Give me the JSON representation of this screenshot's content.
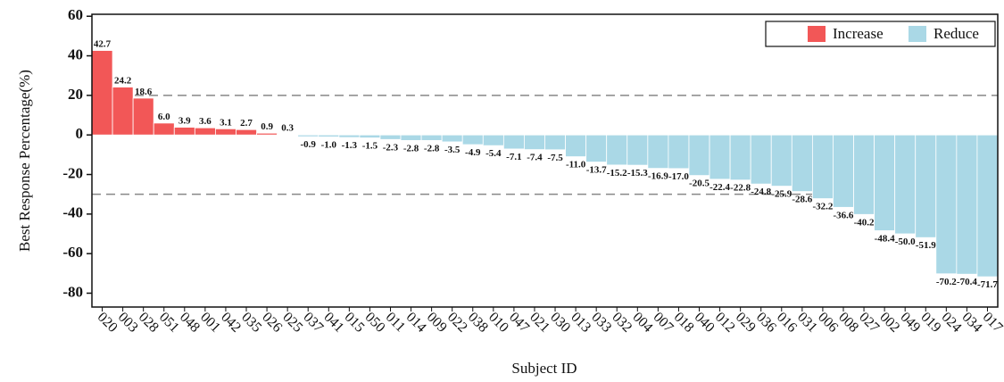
{
  "chart_data": {
    "type": "bar",
    "x_label": "Subject ID",
    "y_label": "Best Response Percentage(%)",
    "categories": [
      "020",
      "003",
      "028",
      "051",
      "048",
      "001",
      "042",
      "035",
      "026",
      "025",
      "037",
      "041",
      "015",
      "050",
      "011",
      "014",
      "009",
      "022",
      "038",
      "010",
      "047",
      "021",
      "030",
      "013",
      "033",
      "032",
      "004",
      "007",
      "018",
      "040",
      "012",
      "029",
      "036",
      "016",
      "031",
      "006",
      "008",
      "027",
      "002",
      "049",
      "019",
      "024",
      "034",
      "017"
    ],
    "series": [
      {
        "name": "Increase",
        "color": "#f25757",
        "values": [
          42.7,
          24.2,
          18.6,
          6.0,
          3.9,
          3.6,
          3.1,
          2.7,
          0.9,
          0.3,
          null,
          null,
          null,
          null,
          null,
          null,
          null,
          null,
          null,
          null,
          null,
          null,
          null,
          null,
          null,
          null,
          null,
          null,
          null,
          null,
          null,
          null,
          null,
          null,
          null,
          null,
          null,
          null,
          null,
          null,
          null,
          null,
          null,
          null
        ],
        "value_labels": [
          "42.7",
          "24.2",
          "18.6",
          "6.0",
          "3.9",
          "3.6",
          "3.1",
          "2.7",
          "0.9",
          "0.3",
          null,
          null,
          null,
          null,
          null,
          null,
          null,
          null,
          null,
          null,
          null,
          null,
          null,
          null,
          null,
          null,
          null,
          null,
          null,
          null,
          null,
          null,
          null,
          null,
          null,
          null,
          null,
          null,
          null,
          null,
          null,
          null,
          null,
          null
        ]
      },
      {
        "name": "Reduce",
        "color": "#aad8e6",
        "values": [
          null,
          null,
          null,
          null,
          null,
          null,
          null,
          null,
          null,
          null,
          -0.9,
          -1.0,
          -1.3,
          -1.5,
          -2.3,
          -2.8,
          -2.8,
          -3.5,
          -4.9,
          -5.4,
          -7.1,
          -7.4,
          -7.5,
          -11.0,
          -13.7,
          -15.2,
          -15.3,
          -16.9,
          -17.0,
          -20.5,
          -22.4,
          -22.8,
          -24.8,
          -25.9,
          -28.6,
          -32.2,
          -36.6,
          -40.2,
          -48.4,
          -50.0,
          -51.9,
          -70.2,
          -70.4,
          -71.7
        ],
        "value_labels": [
          null,
          null,
          null,
          null,
          null,
          null,
          null,
          null,
          null,
          null,
          "-0.9",
          "-1.0",
          "-1.3",
          "-1.5",
          "-2.3",
          "-2.8",
          "-2.8",
          "-3.5",
          "-4.9",
          "-5.4",
          "-7.1",
          "-7.4",
          "-7.5",
          "-11.0",
          "-13.7",
          "-15.2",
          "-15.3",
          "-16.9",
          "-17.0",
          "-20.5",
          "-22.4",
          "-22.8",
          "-24.8",
          "-25.9",
          "-28.6",
          "-32.2",
          "-36.6",
          "-40.2",
          "-48.4",
          "-50.0",
          "-51.9",
          "-70.2",
          "-70.4",
          "-71.7"
        ]
      }
    ],
    "ylim": [
      -87,
      61
    ],
    "yticks": [
      -80,
      -60,
      -40,
      -20,
      0,
      20,
      40,
      60
    ],
    "reference_lines": [
      20,
      -30
    ],
    "legend": "upper right"
  }
}
